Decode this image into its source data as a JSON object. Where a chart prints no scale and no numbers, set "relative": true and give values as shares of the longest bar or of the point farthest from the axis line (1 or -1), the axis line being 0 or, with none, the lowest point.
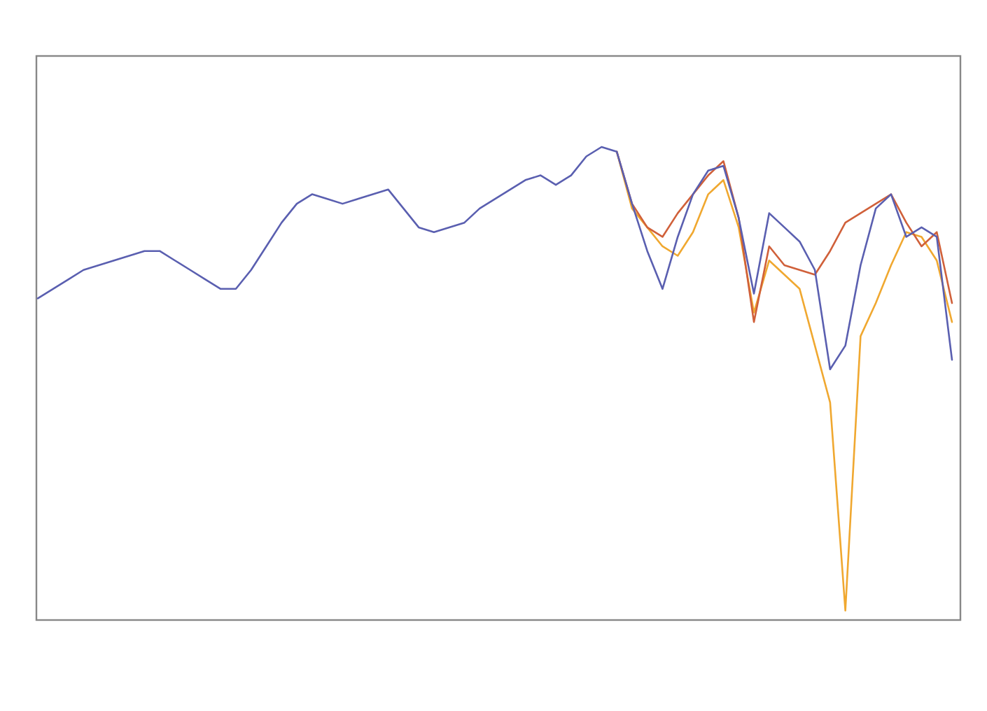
{
  "chart_data": {
    "type": "line",
    "relative": true,
    "marker": "none",
    "line_style": "solid",
    "categories": [
      null,
      null,
      null,
      null,
      null,
      null,
      null,
      null,
      null,
      null,
      null,
      null,
      null,
      null,
      null,
      null,
      null,
      null,
      null,
      null,
      null,
      null,
      null,
      null,
      null,
      null,
      null,
      null,
      null,
      null,
      null,
      null,
      null,
      null,
      null,
      null,
      null,
      null,
      null,
      null,
      null,
      null,
      null,
      null,
      null,
      null,
      null,
      null,
      null,
      null,
      null,
      null,
      null,
      null,
      null,
      null,
      null,
      null,
      null,
      null,
      null
    ],
    "series": [
      {
        "color": "#5a5fb0",
        "values": [
          0.68,
          0.7,
          0.72,
          0.74,
          0.75,
          0.76,
          0.77,
          0.78,
          0.78,
          0.76,
          0.74,
          0.72,
          0.7,
          0.7,
          0.74,
          0.79,
          0.84,
          0.88,
          0.9,
          0.89,
          0.88,
          0.89,
          0.9,
          0.91,
          0.87,
          0.83,
          0.82,
          0.83,
          0.84,
          0.87,
          0.89,
          0.91,
          0.93,
          0.94,
          0.92,
          0.94,
          0.98,
          1.0,
          0.99,
          0.88,
          0.78,
          0.7,
          0.81,
          0.9,
          0.95,
          0.96,
          0.85,
          0.69,
          0.86,
          0.83,
          0.8,
          0.74,
          0.53,
          0.58,
          0.75,
          0.87,
          0.9,
          0.81,
          0.83,
          0.81,
          0.55
        ]
      },
      {
        "color": "#d0603a",
        "values": [
          null,
          null,
          null,
          null,
          null,
          null,
          null,
          null,
          null,
          null,
          null,
          null,
          null,
          null,
          null,
          null,
          null,
          null,
          null,
          null,
          null,
          null,
          null,
          null,
          null,
          null,
          null,
          null,
          null,
          null,
          null,
          null,
          null,
          null,
          null,
          null,
          null,
          null,
          0.99,
          0.88,
          0.83,
          0.81,
          0.86,
          0.9,
          0.94,
          0.97,
          0.85,
          0.63,
          0.79,
          0.75,
          0.74,
          0.73,
          0.78,
          0.84,
          0.86,
          0.88,
          0.9,
          0.84,
          0.79,
          0.82,
          0.67
        ]
      },
      {
        "color": "#f0a830",
        "values": [
          null,
          null,
          null,
          null,
          null,
          null,
          null,
          null,
          null,
          null,
          null,
          null,
          null,
          null,
          null,
          null,
          null,
          null,
          null,
          null,
          null,
          null,
          null,
          null,
          null,
          null,
          null,
          null,
          null,
          null,
          null,
          null,
          null,
          null,
          null,
          null,
          null,
          null,
          0.99,
          0.87,
          0.83,
          0.79,
          0.77,
          0.82,
          0.9,
          0.93,
          0.83,
          0.65,
          0.76,
          0.73,
          0.7,
          0.58,
          0.46,
          0.02,
          0.6,
          0.67,
          0.75,
          0.82,
          0.81,
          0.76,
          0.63
        ]
      }
    ]
  }
}
